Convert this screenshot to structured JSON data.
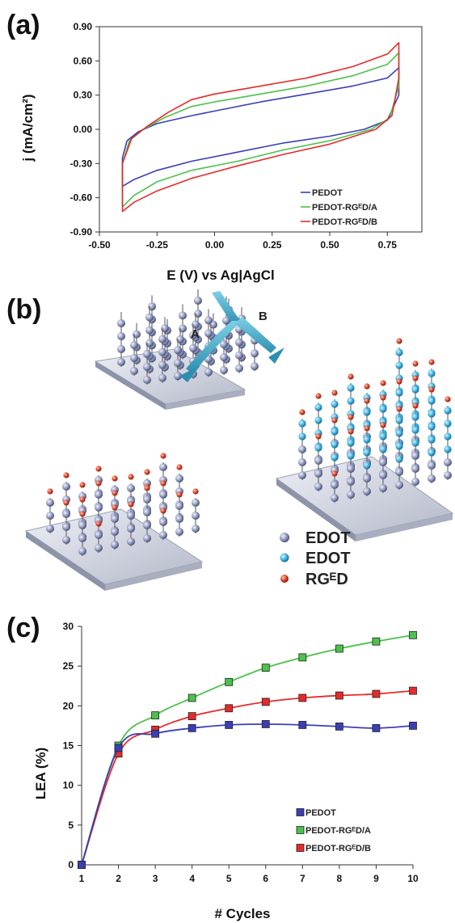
{
  "panels": {
    "a": "(a)",
    "b": "(b)",
    "c": "(c)"
  },
  "colors": {
    "pedot": "#3b3fb5",
    "rged_a": "#4cc14c",
    "rged_b": "#e42b2b"
  },
  "chart_data": [
    {
      "type": "line",
      "panel": "(a)",
      "title": "",
      "xlabel": "E (V) vs Ag|AgCl",
      "ylabel": "j (mA/cm²)",
      "xlim": [
        -0.5,
        0.9
      ],
      "ylim": [
        -0.9,
        0.9
      ],
      "xticks": [
        -0.5,
        -0.25,
        0.0,
        0.25,
        0.5,
        0.75
      ],
      "xtick_labels": [
        "-0.50",
        "-0.25",
        "0.00",
        "0.25",
        "0.50",
        "0.75"
      ],
      "yticks": [
        0.9,
        0.6,
        0.3,
        0.0,
        -0.3,
        -0.6,
        -0.9
      ],
      "ytick_labels": [
        "0.90",
        "0.60",
        "0.30",
        "0.00",
        "-0.30",
        "-0.60",
        "-0.90"
      ],
      "legend_position": "bottom-right",
      "series": [
        {
          "name": "PEDOT",
          "color": "#3b3fb5",
          "points": [
            [
              -0.4,
              -0.5
            ],
            [
              -0.4,
              -0.25
            ],
            [
              -0.38,
              -0.1
            ],
            [
              -0.33,
              -0.02
            ],
            [
              -0.25,
              0.05
            ],
            [
              -0.1,
              0.12
            ],
            [
              0.0,
              0.16
            ],
            [
              0.2,
              0.24
            ],
            [
              0.4,
              0.31
            ],
            [
              0.6,
              0.38
            ],
            [
              0.75,
              0.45
            ],
            [
              0.8,
              0.54
            ],
            [
              0.8,
              0.3
            ],
            [
              0.75,
              0.08
            ],
            [
              0.65,
              0.0
            ],
            [
              0.5,
              -0.06
            ],
            [
              0.3,
              -0.12
            ],
            [
              0.1,
              -0.2
            ],
            [
              -0.1,
              -0.28
            ],
            [
              -0.25,
              -0.36
            ],
            [
              -0.35,
              -0.44
            ],
            [
              -0.4,
              -0.5
            ]
          ]
        },
        {
          "name": "PEDOT-RGᴱD/A",
          "color": "#4cc14c",
          "points": [
            [
              -0.4,
              -0.68
            ],
            [
              -0.4,
              -0.3
            ],
            [
              -0.37,
              -0.1
            ],
            [
              -0.31,
              0.0
            ],
            [
              -0.22,
              0.1
            ],
            [
              -0.1,
              0.2
            ],
            [
              0.0,
              0.24
            ],
            [
              0.2,
              0.31
            ],
            [
              0.4,
              0.38
            ],
            [
              0.6,
              0.47
            ],
            [
              0.75,
              0.57
            ],
            [
              0.8,
              0.67
            ],
            [
              0.8,
              0.38
            ],
            [
              0.76,
              0.1
            ],
            [
              0.68,
              0.0
            ],
            [
              0.5,
              -0.1
            ],
            [
              0.3,
              -0.18
            ],
            [
              0.1,
              -0.28
            ],
            [
              -0.1,
              -0.36
            ],
            [
              -0.25,
              -0.46
            ],
            [
              -0.35,
              -0.58
            ],
            [
              -0.4,
              -0.68
            ]
          ]
        },
        {
          "name": "PEDOT-RGᴱD/B",
          "color": "#e42b2b",
          "points": [
            [
              -0.4,
              -0.72
            ],
            [
              -0.4,
              -0.3
            ],
            [
              -0.36,
              -0.08
            ],
            [
              -0.29,
              0.03
            ],
            [
              -0.2,
              0.15
            ],
            [
              -0.1,
              0.26
            ],
            [
              0.0,
              0.31
            ],
            [
              0.2,
              0.38
            ],
            [
              0.4,
              0.45
            ],
            [
              0.6,
              0.55
            ],
            [
              0.75,
              0.66
            ],
            [
              0.8,
              0.76
            ],
            [
              0.8,
              0.45
            ],
            [
              0.77,
              0.12
            ],
            [
              0.7,
              0.0
            ],
            [
              0.5,
              -0.13
            ],
            [
              0.3,
              -0.22
            ],
            [
              0.1,
              -0.32
            ],
            [
              -0.1,
              -0.43
            ],
            [
              -0.25,
              -0.54
            ],
            [
              -0.35,
              -0.64
            ],
            [
              -0.4,
              -0.72
            ]
          ]
        }
      ]
    },
    {
      "type": "line",
      "panel": "(c)",
      "title": "",
      "xlabel": "# Cycles",
      "ylabel": "LEA (%)",
      "xlim": [
        1,
        10
      ],
      "ylim": [
        0,
        30
      ],
      "categories": [
        1,
        2,
        3,
        4,
        5,
        6,
        7,
        8,
        9,
        10
      ],
      "yticks": [
        0,
        5,
        10,
        15,
        20,
        25,
        30
      ],
      "legend_position": "bottom-right",
      "grid": false,
      "series": [
        {
          "name": "PEDOT",
          "color": "#3b3fb5",
          "values": [
            0,
            14.7,
            16.5,
            17.2,
            17.6,
            17.7,
            17.6,
            17.4,
            17.2,
            17.5
          ]
        },
        {
          "name": "PEDOT-RGᴱD/A",
          "color": "#4cc14c",
          "values": [
            0,
            15.0,
            18.8,
            21.0,
            23.0,
            24.8,
            26.1,
            27.2,
            28.1,
            28.9
          ]
        },
        {
          "name": "PEDOT-RGᴱD/B",
          "color": "#e42b2b",
          "values": [
            0,
            14.0,
            17.0,
            18.7,
            19.7,
            20.5,
            21.0,
            21.3,
            21.5,
            21.9
          ]
        }
      ]
    }
  ],
  "scheme": {
    "arrow_a": "A",
    "arrow_b": "B",
    "legend": [
      {
        "label": "EDOT",
        "marker": "gray-sphere-icon",
        "color": "#8a93b8"
      },
      {
        "label": "EDOT",
        "marker": "blue-sphere-icon",
        "color": "#3fb2e0"
      },
      {
        "label": "RGᴱD",
        "marker": "red-sphere-icon",
        "color": "#d9432a"
      }
    ]
  }
}
